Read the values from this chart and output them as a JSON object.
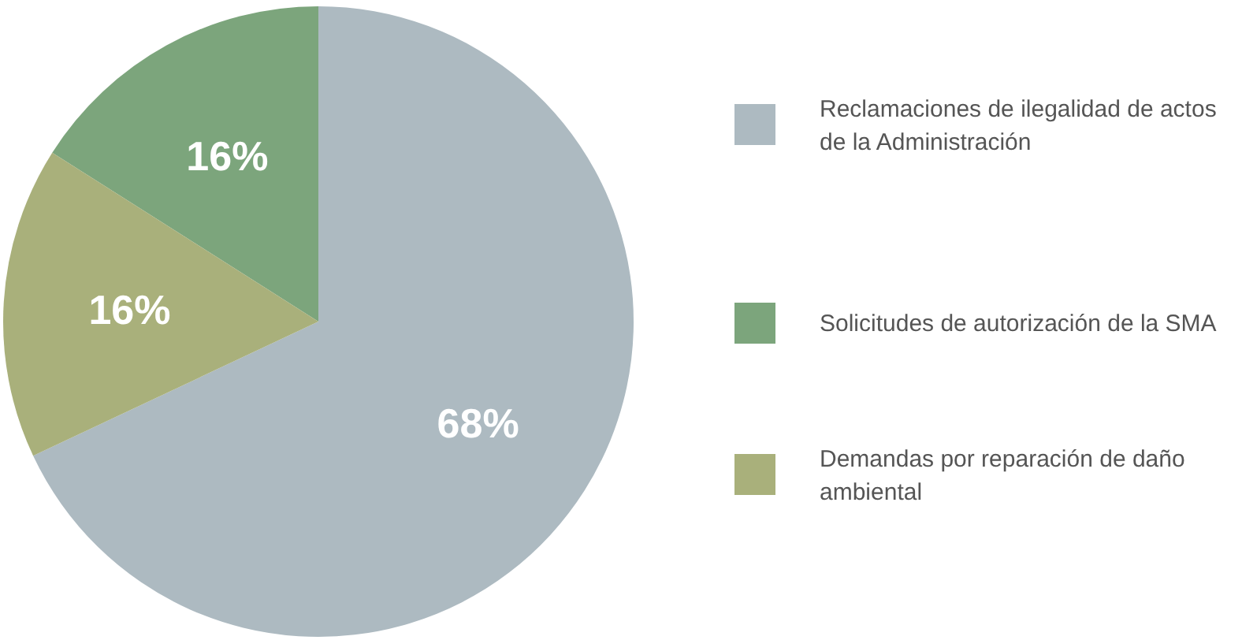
{
  "chart_data": {
    "type": "pie",
    "categories": [
      "Reclamaciones de ilegalidad de actos de la Administración",
      "Solicitudes de autorización de la SMA",
      "Demandas por reparación de daño ambiental"
    ],
    "values": [
      68,
      16,
      16
    ],
    "colors": [
      "#adbac1",
      "#7ca57c",
      "#a9b07b"
    ],
    "value_labels": [
      "68%",
      "16%",
      "16%"
    ],
    "legend": "right"
  }
}
